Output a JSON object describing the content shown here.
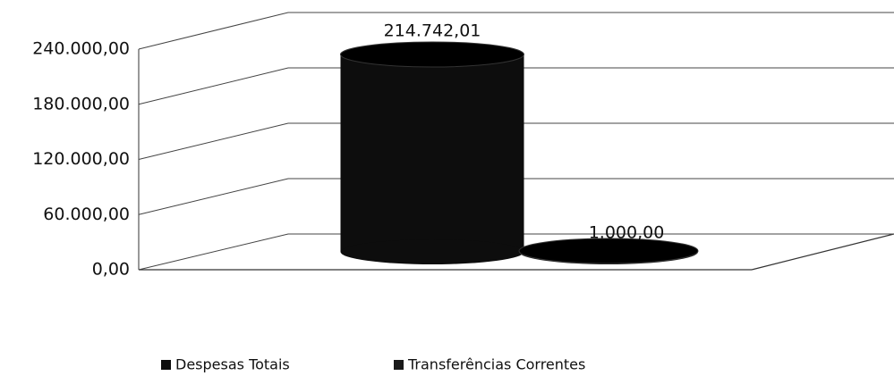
{
  "chart_data": {
    "type": "bar",
    "categories": [
      null
    ],
    "series": [
      {
        "name": "Despesas Totais",
        "color": "#0d0d0d",
        "values": [
          214742.01
        ],
        "value_labels": [
          "214.742,01"
        ]
      },
      {
        "name": "Transferências Correntes",
        "color": "#1a1a1a",
        "values": [
          1000
        ],
        "value_labels": [
          "1.000,00"
        ]
      }
    ],
    "ylim": [
      0,
      240000
    ],
    "yticks": [
      {
        "value": 0,
        "label": "0,00"
      },
      {
        "value": 60000,
        "label": "60.000,00"
      },
      {
        "value": 120000,
        "label": "120.000,00"
      },
      {
        "value": 180000,
        "label": "180.000,00"
      },
      {
        "value": 240000,
        "label": "240.000,00"
      }
    ],
    "grid": true,
    "legend": "bottom"
  }
}
